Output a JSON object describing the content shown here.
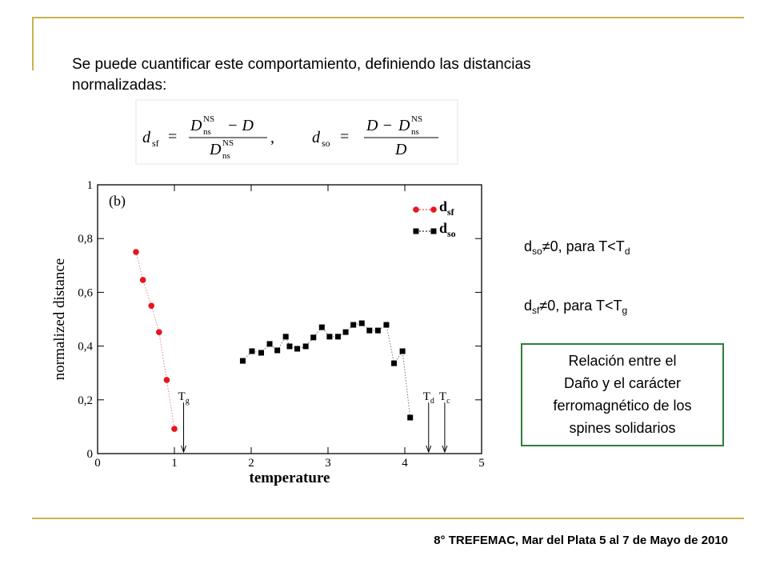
{
  "slide": {
    "intro_lines": [
      "Se puede cuantificar este comportamiento, definiendo las distancias",
      "normalizadas:"
    ],
    "formula": {
      "d": "d",
      "sf": "sf",
      "so": "so",
      "D": "D",
      "ns": "ns",
      "NS": "NS",
      "minus_D": "− D",
      "D_minus": "D −",
      "eq": "=",
      "comma": ","
    },
    "note_so": {
      "d": "d",
      "sub": "so",
      "text": "≠0, para T<T",
      "sub2": "d"
    },
    "note_sf": {
      "d": "d",
      "sub": "sf",
      "text": "≠0, para T<T",
      "sub2": "g"
    },
    "box_lines": [
      "Relación entre el",
      "Daño y el carácter",
      "ferromagnético de los",
      "spines solidarios"
    ],
    "footer": "8° TREFEMAC, Mar del Plata 5 al 7 de Mayo de 2010"
  },
  "chart_data": {
    "type": "scatter",
    "panel_label": "(b)",
    "x_label": "temperature",
    "y_label": "normalized distance",
    "xlim": [
      0,
      5
    ],
    "xticks": [
      0,
      1,
      2,
      3,
      4,
      5
    ],
    "ylim": [
      0,
      1
    ],
    "yticks": [
      0,
      {
        "value": 0.2,
        "label": "0,2"
      },
      {
        "value": 0.4,
        "label": "0,4"
      },
      {
        "value": 0.6,
        "label": "0,6"
      },
      {
        "value": 0.8,
        "label": "0,8"
      },
      1
    ],
    "legend": "upper right",
    "series": [
      {
        "name": "d",
        "subscript": "sf",
        "color": "#e8141e",
        "marker": "circle",
        "x": [
          0.5,
          0.59,
          0.7,
          0.8,
          0.9,
          1.0
        ],
        "values": [
          0.75,
          0.646,
          0.55,
          0.452,
          0.274,
          0.092
        ]
      },
      {
        "name": "d",
        "subscript": "so",
        "color": "#000000",
        "marker": "square",
        "x": [
          1.89,
          2.01,
          2.13,
          2.24,
          2.34,
          2.45,
          2.5,
          2.6,
          2.71,
          2.81,
          2.92,
          3.02,
          3.13,
          3.23,
          3.33,
          3.44,
          3.54,
          3.65,
          3.76,
          3.86,
          3.97,
          4.07
        ],
        "values": [
          0.345,
          0.381,
          0.375,
          0.408,
          0.384,
          0.435,
          0.399,
          0.39,
          0.399,
          0.432,
          0.47,
          0.435,
          0.435,
          0.452,
          0.479,
          0.485,
          0.458,
          0.458,
          0.479,
          0.336,
          0.381,
          0.134
        ]
      }
    ],
    "annotations": [
      {
        "text": "T",
        "sub": "g",
        "x": 1.12
      },
      {
        "text": "T",
        "sub": "d",
        "x": 4.31
      },
      {
        "text": "T",
        "sub": "c",
        "x": 4.52
      }
    ]
  }
}
